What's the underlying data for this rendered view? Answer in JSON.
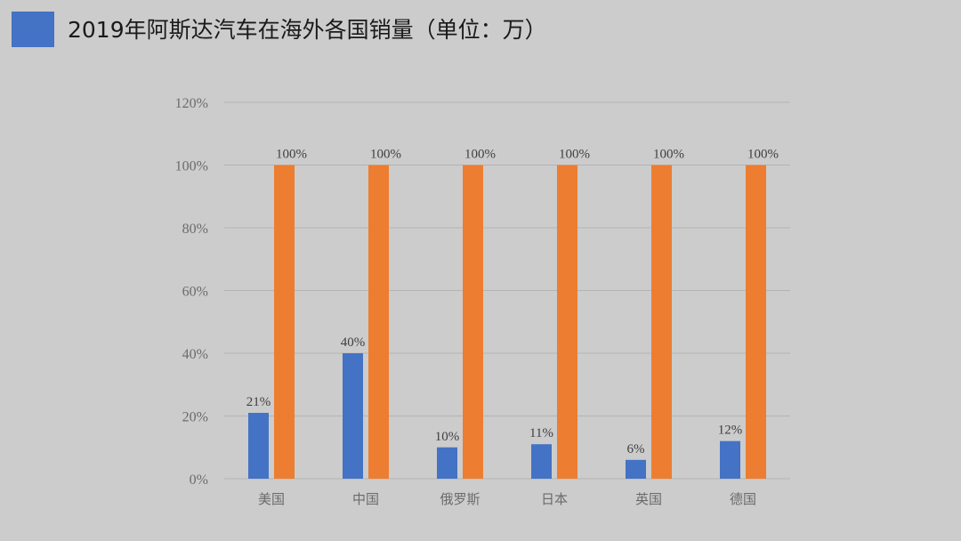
{
  "title": "2019年阿斯达汽车在海外各国销量（单位：万）",
  "colors": {
    "marker": "#4472c4",
    "series1": "#4472c4",
    "series2": "#ed7d31",
    "grid": "#b3b3b3",
    "background": "#cccccc"
  },
  "chart_data": {
    "type": "bar",
    "categories": [
      "美国",
      "中国",
      "俄罗斯",
      "日本",
      "英国",
      "德国"
    ],
    "series": [
      {
        "values": [
          21,
          40,
          10,
          11,
          6,
          12
        ],
        "labels": [
          "21%",
          "40%",
          "10%",
          "11%",
          "6%",
          "12%"
        ],
        "color": "#4472c4"
      },
      {
        "values": [
          100,
          100,
          100,
          100,
          100,
          100
        ],
        "labels": [
          "100%",
          "100%",
          "100%",
          "100%",
          "100%",
          "100%"
        ],
        "color": "#ed7d31"
      }
    ],
    "y_ticks": [
      "0%",
      "20%",
      "40%",
      "60%",
      "80%",
      "100%",
      "120%"
    ],
    "ylim": [
      0,
      120
    ],
    "grid": true,
    "legend": "none"
  }
}
